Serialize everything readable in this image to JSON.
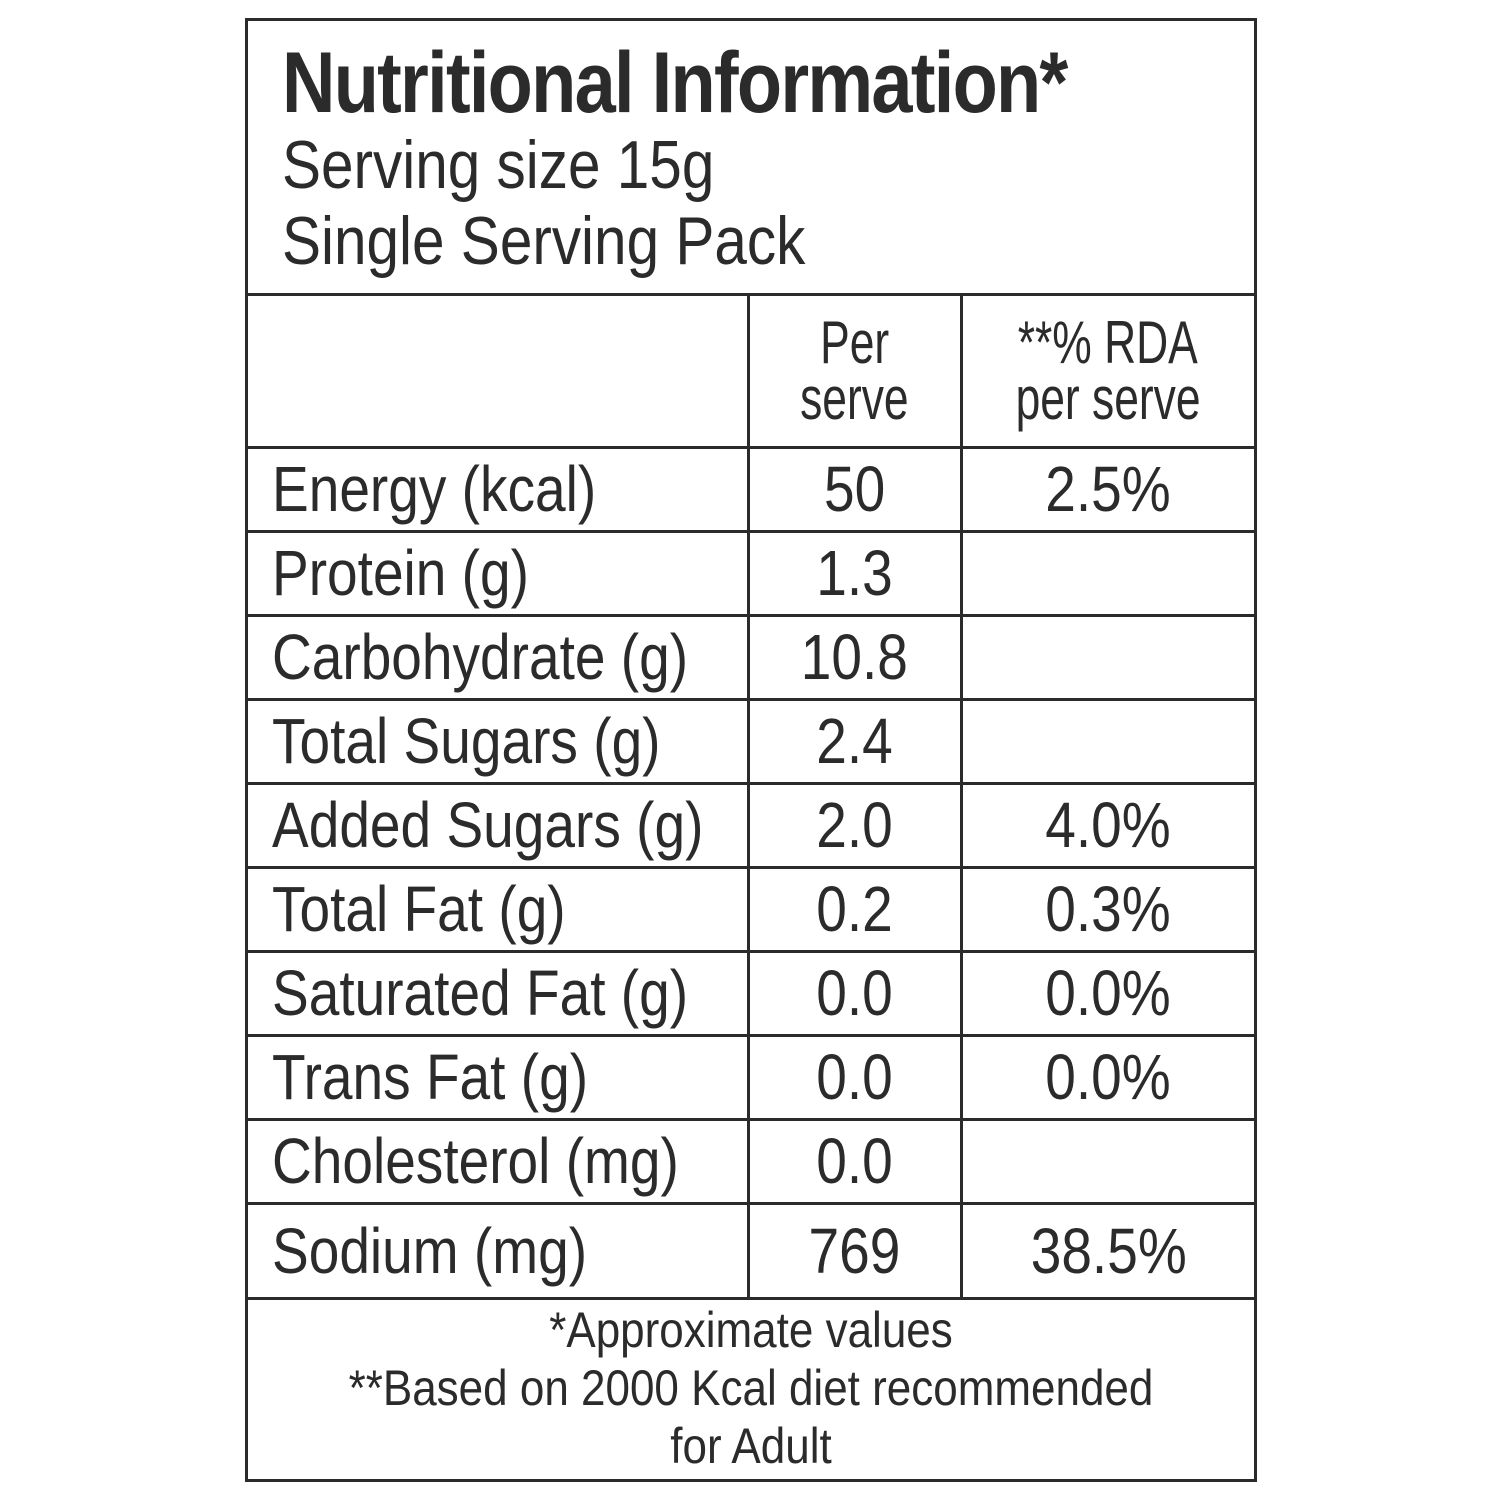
{
  "header": {
    "title": "Nutritional Information*",
    "serving_size": "Serving size 15g",
    "pack": "Single Serving Pack"
  },
  "columns": {
    "per_serve_line1": "Per",
    "per_serve_line2": "serve",
    "rda_line1": "**% RDA",
    "rda_line2": "per serve"
  },
  "rows": [
    {
      "nutrient": "Energy (kcal)",
      "per_serve": "50",
      "rda": "2.5%"
    },
    {
      "nutrient": "Protein (g)",
      "per_serve": "1.3",
      "rda": ""
    },
    {
      "nutrient": "Carbohydrate (g)",
      "per_serve": "10.8",
      "rda": ""
    },
    {
      "nutrient": "Total Sugars (g)",
      "per_serve": "2.4",
      "rda": ""
    },
    {
      "nutrient": "Added Sugars (g)",
      "per_serve": "2.0",
      "rda": "4.0%"
    },
    {
      "nutrient": "Total Fat (g)",
      "per_serve": "0.2",
      "rda": "0.3%"
    },
    {
      "nutrient": "Saturated Fat (g)",
      "per_serve": "0.0",
      "rda": "0.0%"
    },
    {
      "nutrient": "Trans Fat (g)",
      "per_serve": "0.0",
      "rda": "0.0%"
    },
    {
      "nutrient": "Cholesterol (mg)",
      "per_serve": "0.0",
      "rda": ""
    },
    {
      "nutrient": "Sodium (mg)",
      "per_serve": "769",
      "rda": "38.5%"
    }
  ],
  "footer": {
    "note1": "*Approximate values",
    "note2": "**Based on 2000 Kcal diet recommended",
    "note3": "for Adult"
  }
}
